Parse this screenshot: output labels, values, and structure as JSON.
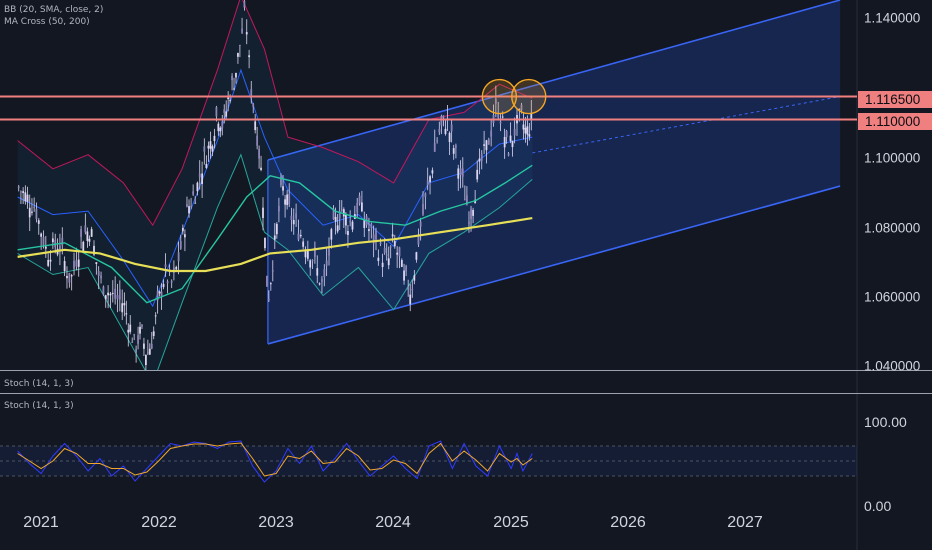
{
  "indicators": {
    "bb": "BB (20, SMA, close, 2)",
    "ma": "MA Cross (50, 200)",
    "stoch_top": "Stoch (14, 1, 3)",
    "stoch": "Stoch (14, 1, 3)"
  },
  "colors": {
    "background": "#131722",
    "channel": "#3865f5",
    "levels": "#f08080",
    "ma50": "#26c6a0",
    "ma200": "#e6df57",
    "bb_upper": "#c2185b",
    "bb_lower": "#26a69a",
    "bb_basis": "#2962ff",
    "candle": "#ddd6f0",
    "stoch_k": "#2f3bff",
    "stoch_d": "#f2a72b",
    "circle": "#f5a623"
  },
  "chart_data": {
    "type": "line",
    "symbol_period": "weekly",
    "x_ticks": [
      "2021",
      "2022",
      "2023",
      "2024",
      "2025",
      "2026",
      "2027"
    ],
    "x_range": [
      2020.8,
      2027.8
    ],
    "price_axis": {
      "ticks": [
        "1.140000",
        "1.100000",
        "1.080000",
        "1.060000",
        "1.040000"
      ],
      "ylim": [
        1.0389,
        1.1439
      ]
    },
    "highlighted_levels": [
      {
        "label": "1.116500",
        "value": 1.1165
      },
      {
        "label": "1.110000",
        "value": 1.11
      }
    ],
    "regression_channel": {
      "start": 2022.93,
      "end": 2027.8,
      "mid_start": 1.0715,
      "mid_end": 1.1165,
      "upper_start": 1.0985,
      "upper_end": 1.1439,
      "lower_start": 1.0463,
      "lower_end": 1.0911
    },
    "highlight_circles": [
      {
        "x": 2024.9,
        "y": 1.1165
      },
      {
        "x": 2025.15,
        "y": 1.1165
      }
    ],
    "price_series": {
      "name": "Close",
      "points": [
        [
          2020.8,
          1.091
        ],
        [
          2020.95,
          1.085
        ],
        [
          2021.05,
          1.072
        ],
        [
          2021.15,
          1.075
        ],
        [
          2021.25,
          1.064
        ],
        [
          2021.35,
          1.077
        ],
        [
          2021.42,
          1.079
        ],
        [
          2021.5,
          1.064
        ],
        [
          2021.6,
          1.06
        ],
        [
          2021.7,
          1.058
        ],
        [
          2021.75,
          1.052
        ],
        [
          2021.8,
          1.045
        ],
        [
          2021.85,
          1.05
        ],
        [
          2021.9,
          1.043
        ],
        [
          2021.95,
          1.048
        ],
        [
          2022.0,
          1.058
        ],
        [
          2022.05,
          1.066
        ],
        [
          2022.12,
          1.063
        ],
        [
          2022.18,
          1.072
        ],
        [
          2022.25,
          1.085
        ],
        [
          2022.32,
          1.09
        ],
        [
          2022.38,
          1.098
        ],
        [
          2022.45,
          1.104
        ],
        [
          2022.5,
          1.112
        ],
        [
          2022.55,
          1.108
        ],
        [
          2022.6,
          1.117
        ],
        [
          2022.65,
          1.122
        ],
        [
          2022.7,
          1.133
        ],
        [
          2022.74,
          1.141
        ],
        [
          2022.78,
          1.121
        ],
        [
          2022.83,
          1.108
        ],
        [
          2022.88,
          1.093
        ],
        [
          2022.93,
          1.058
        ],
        [
          2022.98,
          1.072
        ],
        [
          2023.05,
          1.091
        ],
        [
          2023.12,
          1.083
        ],
        [
          2023.2,
          1.078
        ],
        [
          2023.3,
          1.072
        ],
        [
          2023.4,
          1.062
        ],
        [
          2023.48,
          1.078
        ],
        [
          2023.55,
          1.085
        ],
        [
          2023.62,
          1.08
        ],
        [
          2023.7,
          1.086
        ],
        [
          2023.8,
          1.078
        ],
        [
          2023.88,
          1.073
        ],
        [
          2023.95,
          1.069
        ],
        [
          2024.0,
          1.076
        ],
        [
          2024.08,
          1.066
        ],
        [
          2024.15,
          1.061
        ],
        [
          2024.22,
          1.078
        ],
        [
          2024.3,
          1.092
        ],
        [
          2024.38,
          1.106
        ],
        [
          2024.45,
          1.11
        ],
        [
          2024.52,
          1.101
        ],
        [
          2024.58,
          1.093
        ],
        [
          2024.65,
          1.082
        ],
        [
          2024.72,
          1.095
        ],
        [
          2024.8,
          1.103
        ],
        [
          2024.88,
          1.114
        ],
        [
          2024.92,
          1.11
        ],
        [
          2024.97,
          1.101
        ],
        [
          2025.02,
          1.106
        ],
        [
          2025.08,
          1.111
        ],
        [
          2025.13,
          1.106
        ],
        [
          2025.18,
          1.11
        ]
      ]
    },
    "moving_averages": [
      {
        "name": "MA 50",
        "points": [
          [
            2020.8,
            1.073
          ],
          [
            2021.2,
            1.075
          ],
          [
            2021.6,
            1.068
          ],
          [
            2021.9,
            1.058
          ],
          [
            2022.2,
            1.062
          ],
          [
            2022.5,
            1.076
          ],
          [
            2022.75,
            1.088
          ],
          [
            2022.95,
            1.094
          ],
          [
            2023.2,
            1.092
          ],
          [
            2023.5,
            1.084
          ],
          [
            2023.8,
            1.081
          ],
          [
            2024.1,
            1.08
          ],
          [
            2024.4,
            1.084
          ],
          [
            2024.7,
            1.087
          ],
          [
            2024.95,
            1.092
          ],
          [
            2025.18,
            1.097
          ]
        ]
      },
      {
        "name": "MA 200",
        "points": [
          [
            2020.8,
            1.071
          ],
          [
            2021.2,
            1.073
          ],
          [
            2021.5,
            1.072
          ],
          [
            2021.8,
            1.069
          ],
          [
            2022.1,
            1.067
          ],
          [
            2022.4,
            1.067
          ],
          [
            2022.7,
            1.069
          ],
          [
            2022.95,
            1.072
          ],
          [
            2023.3,
            1.073
          ],
          [
            2023.7,
            1.075
          ],
          [
            2024.0,
            1.076
          ],
          [
            2024.4,
            1.078
          ],
          [
            2024.8,
            1.08
          ],
          [
            2025.18,
            1.082
          ]
        ]
      }
    ],
    "bollinger_bands": {
      "upper": [
        [
          2020.8,
          1.104
        ],
        [
          2021.1,
          1.096
        ],
        [
          2021.4,
          1.1
        ],
        [
          2021.7,
          1.092
        ],
        [
          2021.95,
          1.08
        ],
        [
          2022.2,
          1.096
        ],
        [
          2022.5,
          1.124
        ],
        [
          2022.7,
          1.145
        ],
        [
          2022.9,
          1.13
        ],
        [
          2023.1,
          1.105
        ],
        [
          2023.4,
          1.102
        ],
        [
          2023.7,
          1.098
        ],
        [
          2024.0,
          1.092
        ],
        [
          2024.3,
          1.11
        ],
        [
          2024.6,
          1.112
        ],
        [
          2024.9,
          1.12
        ],
        [
          2025.18,
          1.116
        ]
      ],
      "basis": [
        [
          2020.8,
          1.088
        ],
        [
          2021.1,
          1.083
        ],
        [
          2021.4,
          1.084
        ],
        [
          2021.7,
          1.07
        ],
        [
          2021.95,
          1.057
        ],
        [
          2022.2,
          1.078
        ],
        [
          2022.5,
          1.104
        ],
        [
          2022.7,
          1.124
        ],
        [
          2022.9,
          1.105
        ],
        [
          2023.1,
          1.09
        ],
        [
          2023.4,
          1.08
        ],
        [
          2023.7,
          1.083
        ],
        [
          2024.0,
          1.074
        ],
        [
          2024.3,
          1.092
        ],
        [
          2024.6,
          1.095
        ],
        [
          2024.9,
          1.103
        ],
        [
          2025.18,
          1.105
        ]
      ],
      "lower": [
        [
          2020.8,
          1.072
        ],
        [
          2021.1,
          1.066
        ],
        [
          2021.4,
          1.068
        ],
        [
          2021.7,
          1.05
        ],
        [
          2021.95,
          1.035
        ],
        [
          2022.2,
          1.058
        ],
        [
          2022.5,
          1.085
        ],
        [
          2022.7,
          1.1
        ],
        [
          2022.9,
          1.078
        ],
        [
          2023.1,
          1.073
        ],
        [
          2023.4,
          1.06
        ],
        [
          2023.7,
          1.068
        ],
        [
          2024.0,
          1.056
        ],
        [
          2024.3,
          1.072
        ],
        [
          2024.6,
          1.078
        ],
        [
          2024.9,
          1.085
        ],
        [
          2025.18,
          1.093
        ]
      ]
    },
    "stochastic": {
      "ticks": [
        "100.00",
        "0.00"
      ],
      "ylim": [
        0,
        100
      ],
      "bands": [
        20,
        50,
        80
      ],
      "k": [
        [
          2020.8,
          70
        ],
        [
          2020.9,
          45
        ],
        [
          2021.0,
          25
        ],
        [
          2021.1,
          60
        ],
        [
          2021.2,
          85
        ],
        [
          2021.3,
          60
        ],
        [
          2021.4,
          30
        ],
        [
          2021.5,
          55
        ],
        [
          2021.6,
          20
        ],
        [
          2021.7,
          40
        ],
        [
          2021.8,
          10
        ],
        [
          2021.9,
          35
        ],
        [
          2022.0,
          60
        ],
        [
          2022.1,
          85
        ],
        [
          2022.2,
          80
        ],
        [
          2022.3,
          88
        ],
        [
          2022.4,
          85
        ],
        [
          2022.5,
          75
        ],
        [
          2022.6,
          88
        ],
        [
          2022.7,
          90
        ],
        [
          2022.8,
          40
        ],
        [
          2022.9,
          8
        ],
        [
          2023.0,
          30
        ],
        [
          2023.1,
          75
        ],
        [
          2023.2,
          45
        ],
        [
          2023.3,
          80
        ],
        [
          2023.4,
          30
        ],
        [
          2023.5,
          55
        ],
        [
          2023.6,
          85
        ],
        [
          2023.7,
          50
        ],
        [
          2023.8,
          20
        ],
        [
          2023.9,
          40
        ],
        [
          2024.0,
          60
        ],
        [
          2024.1,
          35
        ],
        [
          2024.2,
          15
        ],
        [
          2024.3,
          80
        ],
        [
          2024.4,
          90
        ],
        [
          2024.5,
          35
        ],
        [
          2024.6,
          85
        ],
        [
          2024.7,
          40
        ],
        [
          2024.8,
          20
        ],
        [
          2024.9,
          80
        ],
        [
          2025.0,
          35
        ],
        [
          2025.05,
          65
        ],
        [
          2025.1,
          30
        ],
        [
          2025.18,
          65
        ]
      ],
      "d": [
        [
          2020.8,
          65
        ],
        [
          2020.9,
          50
        ],
        [
          2021.0,
          35
        ],
        [
          2021.1,
          50
        ],
        [
          2021.2,
          75
        ],
        [
          2021.3,
          65
        ],
        [
          2021.4,
          45
        ],
        [
          2021.5,
          45
        ],
        [
          2021.6,
          35
        ],
        [
          2021.7,
          35
        ],
        [
          2021.8,
          22
        ],
        [
          2021.9,
          28
        ],
        [
          2022.0,
          50
        ],
        [
          2022.1,
          75
        ],
        [
          2022.2,
          80
        ],
        [
          2022.3,
          84
        ],
        [
          2022.4,
          84
        ],
        [
          2022.5,
          80
        ],
        [
          2022.6,
          84
        ],
        [
          2022.7,
          86
        ],
        [
          2022.8,
          55
        ],
        [
          2022.9,
          20
        ],
        [
          2023.0,
          25
        ],
        [
          2023.1,
          60
        ],
        [
          2023.2,
          55
        ],
        [
          2023.3,
          70
        ],
        [
          2023.4,
          45
        ],
        [
          2023.5,
          48
        ],
        [
          2023.6,
          75
        ],
        [
          2023.7,
          60
        ],
        [
          2023.8,
          32
        ],
        [
          2023.9,
          35
        ],
        [
          2024.0,
          52
        ],
        [
          2024.1,
          45
        ],
        [
          2024.2,
          25
        ],
        [
          2024.3,
          65
        ],
        [
          2024.4,
          85
        ],
        [
          2024.5,
          50
        ],
        [
          2024.6,
          70
        ],
        [
          2024.7,
          52
        ],
        [
          2024.8,
          30
        ],
        [
          2024.9,
          65
        ],
        [
          2025.0,
          48
        ],
        [
          2025.05,
          55
        ],
        [
          2025.1,
          42
        ],
        [
          2025.18,
          55
        ]
      ]
    }
  }
}
